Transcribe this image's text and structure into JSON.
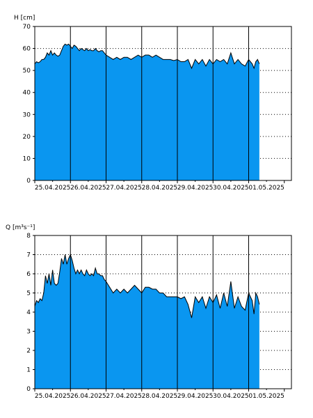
{
  "chart_data": [
    {
      "type": "area",
      "ylabel": "H [cm]",
      "ylim": [
        0,
        70
      ],
      "yticks": [
        0,
        10,
        20,
        30,
        40,
        50,
        60,
        70
      ],
      "xlim": [
        0,
        7.2
      ],
      "xtick_labels": [
        "25.04.2025",
        "26.04.2025",
        "27.04.2025",
        "28.04.2025",
        "29.04.2025",
        "30.04.2025",
        "01.05.2025"
      ],
      "grid": true,
      "fill_color": "#0a96f0",
      "x": [
        0.0,
        0.05,
        0.1,
        0.15,
        0.2,
        0.25,
        0.3,
        0.35,
        0.4,
        0.45,
        0.5,
        0.55,
        0.6,
        0.65,
        0.7,
        0.75,
        0.8,
        0.85,
        0.9,
        0.95,
        1.0,
        1.05,
        1.1,
        1.15,
        1.2,
        1.25,
        1.3,
        1.35,
        1.4,
        1.45,
        1.5,
        1.55,
        1.6,
        1.65,
        1.7,
        1.75,
        1.8,
        1.85,
        1.9,
        1.95,
        2.0,
        2.1,
        2.2,
        2.3,
        2.4,
        2.5,
        2.6,
        2.7,
        2.8,
        2.9,
        3.0,
        3.1,
        3.2,
        3.3,
        3.4,
        3.5,
        3.6,
        3.7,
        3.8,
        3.9,
        4.0,
        4.1,
        4.2,
        4.3,
        4.4,
        4.5,
        4.6,
        4.7,
        4.8,
        4.9,
        5.0,
        5.1,
        5.2,
        5.3,
        5.4,
        5.5,
        5.6,
        5.7,
        5.8,
        5.9,
        6.0,
        6.1,
        6.15,
        6.2,
        6.25,
        6.3
      ],
      "y": [
        53,
        54,
        53.5,
        54,
        55,
        55,
        56,
        58,
        57,
        59,
        57,
        58,
        57,
        56.5,
        57,
        59,
        61,
        62,
        61.5,
        62,
        61,
        60,
        61.5,
        61,
        60,
        59,
        60,
        59.5,
        59,
        60,
        59,
        59.5,
        59,
        59,
        60,
        59,
        58.5,
        59,
        59,
        58,
        57,
        56,
        55,
        56,
        55,
        56,
        56,
        55,
        56,
        57,
        56,
        57,
        57,
        56,
        57,
        56,
        55,
        55,
        55,
        54.5,
        55,
        54,
        54,
        55,
        51,
        55,
        53,
        55,
        52,
        55,
        53,
        55,
        54,
        55,
        53,
        58,
        53,
        55,
        53,
        52,
        55,
        53,
        51,
        54,
        55,
        53
      ]
    },
    {
      "type": "area",
      "ylabel": "Q [m³s⁻¹]",
      "ylim": [
        0,
        8
      ],
      "yticks": [
        0,
        1,
        2,
        3,
        4,
        5,
        6,
        7,
        8
      ],
      "xlim": [
        0,
        7.2
      ],
      "xtick_labels": [
        "25.04.2025",
        "26.04.2025",
        "27.04.2025",
        "28.04.2025",
        "29.04.2025",
        "30.04.2025",
        "01.05.2025"
      ],
      "grid": true,
      "fill_color": "#0a96f0",
      "x": [
        0.0,
        0.05,
        0.1,
        0.15,
        0.2,
        0.25,
        0.3,
        0.35,
        0.4,
        0.45,
        0.5,
        0.55,
        0.6,
        0.65,
        0.7,
        0.75,
        0.8,
        0.85,
        0.9,
        0.95,
        1.0,
        1.05,
        1.1,
        1.15,
        1.2,
        1.25,
        1.3,
        1.35,
        1.4,
        1.45,
        1.5,
        1.55,
        1.6,
        1.65,
        1.7,
        1.75,
        1.8,
        1.85,
        1.9,
        1.95,
        2.0,
        2.1,
        2.2,
        2.3,
        2.4,
        2.5,
        2.6,
        2.7,
        2.8,
        2.9,
        3.0,
        3.1,
        3.2,
        3.3,
        3.4,
        3.5,
        3.6,
        3.7,
        3.8,
        3.9,
        4.0,
        4.1,
        4.2,
        4.3,
        4.4,
        4.5,
        4.6,
        4.7,
        4.8,
        4.9,
        5.0,
        5.1,
        5.2,
        5.3,
        5.4,
        5.5,
        5.6,
        5.7,
        5.8,
        5.9,
        6.0,
        6.1,
        6.15,
        6.2,
        6.25,
        6.3
      ],
      "y": [
        4.3,
        4.6,
        4.5,
        4.7,
        4.6,
        5.0,
        5.9,
        5.5,
        6.0,
        5.4,
        6.2,
        5.5,
        5.4,
        5.5,
        6.1,
        6.8,
        6.5,
        7.0,
        6.5,
        6.8,
        7.0,
        6.7,
        6.3,
        6.0,
        6.2,
        6.0,
        6.2,
        6.0,
        5.9,
        6.2,
        6.0,
        5.9,
        6.0,
        5.9,
        6.3,
        6.0,
        6.0,
        5.9,
        5.9,
        5.7,
        5.6,
        5.3,
        5.0,
        5.2,
        5.0,
        5.2,
        5.0,
        5.2,
        5.4,
        5.2,
        5.0,
        5.3,
        5.3,
        5.2,
        5.2,
        5.0,
        5.0,
        4.8,
        4.8,
        4.8,
        4.8,
        4.7,
        4.8,
        4.4,
        3.7,
        4.8,
        4.5,
        4.8,
        4.2,
        4.8,
        4.5,
        4.9,
        4.2,
        5.0,
        4.3,
        5.6,
        4.2,
        4.8,
        4.3,
        4.1,
        5.0,
        4.6,
        3.9,
        5.0,
        4.8,
        4.4
      ]
    }
  ]
}
